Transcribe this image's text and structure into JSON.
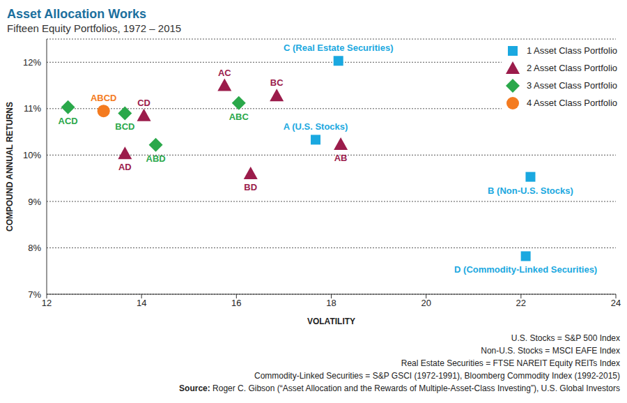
{
  "chart_data": {
    "type": "scatter",
    "title": "Asset Allocation Works",
    "subtitle": "Fifteen Equity Portfolios, 1972 – 2015",
    "x_label": "VOLATILITY",
    "y_label": "COMPOUND ANNUAL RETURNS",
    "xlim": [
      12,
      24
    ],
    "xticks": [
      12,
      14,
      16,
      18,
      20,
      22,
      24
    ],
    "ylim": [
      7,
      12.5
    ],
    "yticks": [
      {
        "value": 7,
        "label": "7%"
      },
      {
        "value": 8,
        "label": "8%"
      },
      {
        "value": 9,
        "label": "9%"
      },
      {
        "value": 10,
        "label": "10%"
      },
      {
        "value": 11,
        "label": "11%"
      },
      {
        "value": 12,
        "label": "12%"
      }
    ],
    "grid": true,
    "legend": "top-right",
    "series": [
      {
        "name": "1 Asset Class Portfolio",
        "color": "#1aa8e0",
        "marker": "square",
        "x": [
          18.15,
          17.67,
          22.2,
          22.1
        ],
        "values": [
          12.03,
          10.33,
          9.53,
          7.82
        ],
        "labels": [
          "C (Real Estate Securities)",
          "A (U.S. Stocks)",
          "B (Non-U.S. Stocks)",
          "D (Commodity-Linked Securities)"
        ]
      },
      {
        "name": "2 Asset Class Portfolio",
        "color": "#9b1c4b",
        "marker": "triangle",
        "x": [
          15.75,
          16.85,
          14.05,
          13.65,
          18.2,
          16.3
        ],
        "values": [
          11.5,
          11.28,
          10.85,
          10.03,
          10.23,
          9.6
        ],
        "labels": [
          "AC",
          "BC",
          "CD",
          "AD",
          "AB",
          "BD"
        ]
      },
      {
        "name": "3 Asset Class Portfolio",
        "color": "#2aa84a",
        "marker": "diamond",
        "x": [
          12.45,
          13.65,
          16.05,
          14.3
        ],
        "values": [
          11.03,
          10.9,
          11.12,
          10.22
        ],
        "labels": [
          "ACD",
          "BCD",
          "ABC",
          "ABD"
        ]
      },
      {
        "name": "4 Asset Class Portfolio",
        "color": "#f47b20",
        "marker": "circle",
        "x": [
          13.2
        ],
        "values": [
          10.95
        ],
        "labels": [
          "ABCD"
        ]
      }
    ],
    "notes": [
      "U.S. Stocks = S&P 500 Index",
      "Non-U.S. Stocks = MSCI EAFE Index",
      "Real Estate Securities = FTSE NAREIT Equity REITs Index",
      "Commodity-Linked Securities = S&P GSCI (1972-1991), Bloomberg Commodity Index (1992-2015)"
    ],
    "source": {
      "label": "Source:",
      "text": "Roger C. Gibson (“Asset Allocation and the Rewards of Multiple-Asset-Class Investing”), U.S. Global Investors"
    }
  }
}
